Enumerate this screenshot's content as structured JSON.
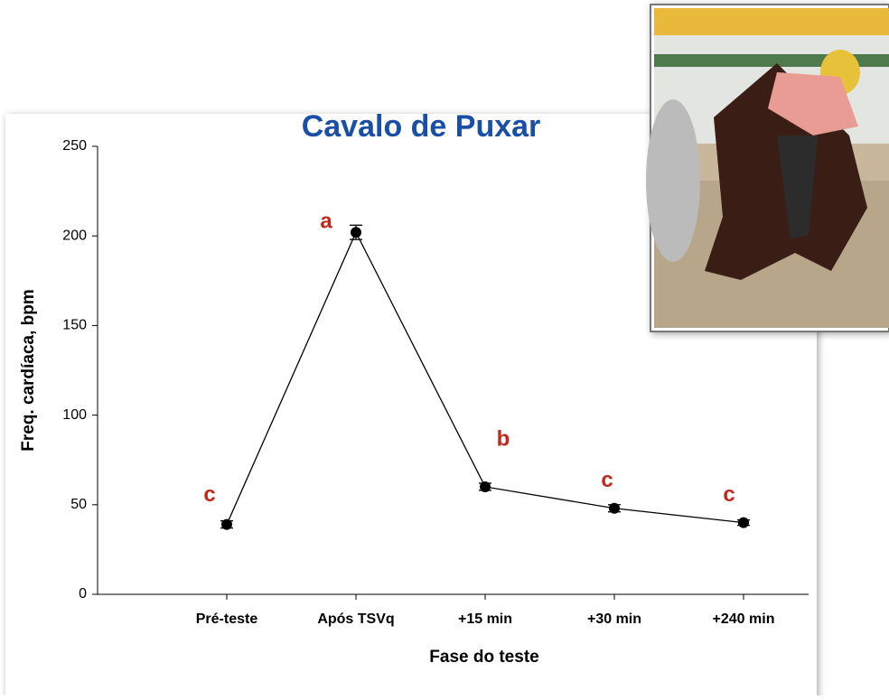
{
  "chart_data": {
    "type": "line",
    "title": "Cavalo de Puxar",
    "x_label": "Fase do teste",
    "y_label": "Freq. cardíaca, bpm",
    "categories": [
      "Pré-teste",
      "Após TSVq",
      "+15 min",
      "+30 min",
      "+240 min"
    ],
    "values": [
      39,
      202,
      60,
      48,
      40
    ],
    "errors": [
      2,
      4,
      2,
      2,
      1.5
    ],
    "annotations": [
      "c",
      "a",
      "b",
      "c",
      "c"
    ],
    "color": "#000000",
    "annotation_color": "#c0281b",
    "title_color": "#1a4fa8",
    "ylim": [
      0,
      250
    ],
    "yticks": [
      0,
      50,
      100,
      150,
      200,
      250
    ],
    "grid": false
  }
}
